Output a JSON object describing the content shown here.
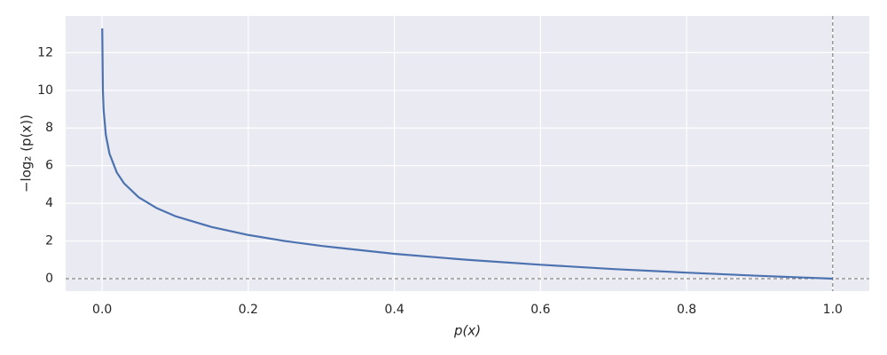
{
  "chart_data": {
    "type": "line",
    "xlabel": "p(x)",
    "ylabel": "−log₂ (p(x))",
    "x": [
      0.0001,
      0.001,
      0.002,
      0.005,
      0.01,
      0.02,
      0.03,
      0.05,
      0.075,
      0.1,
      0.15,
      0.2,
      0.25,
      0.3,
      0.4,
      0.5,
      0.6,
      0.7,
      0.8,
      0.9,
      1.0
    ],
    "series": [
      {
        "color": "#4c72b0",
        "values": [
          13.29,
          9.97,
          8.97,
          7.64,
          6.64,
          5.64,
          5.06,
          4.32,
          3.74,
          3.32,
          2.74,
          2.32,
          2.0,
          1.74,
          1.32,
          1.0,
          0.74,
          0.51,
          0.32,
          0.15,
          0.0
        ]
      }
    ],
    "xlim": [
      -0.05,
      1.05
    ],
    "ylim": [
      -0.66,
      13.95
    ],
    "xticks": [
      {
        "value": 0,
        "label": "0.0"
      },
      0.2,
      0.4,
      0.6,
      0.8,
      {
        "value": 1,
        "label": "1.0"
      }
    ],
    "yticks": [
      0,
      2,
      4,
      6,
      8,
      10,
      12
    ],
    "grid": true,
    "hline": 0,
    "vline": 1
  }
}
